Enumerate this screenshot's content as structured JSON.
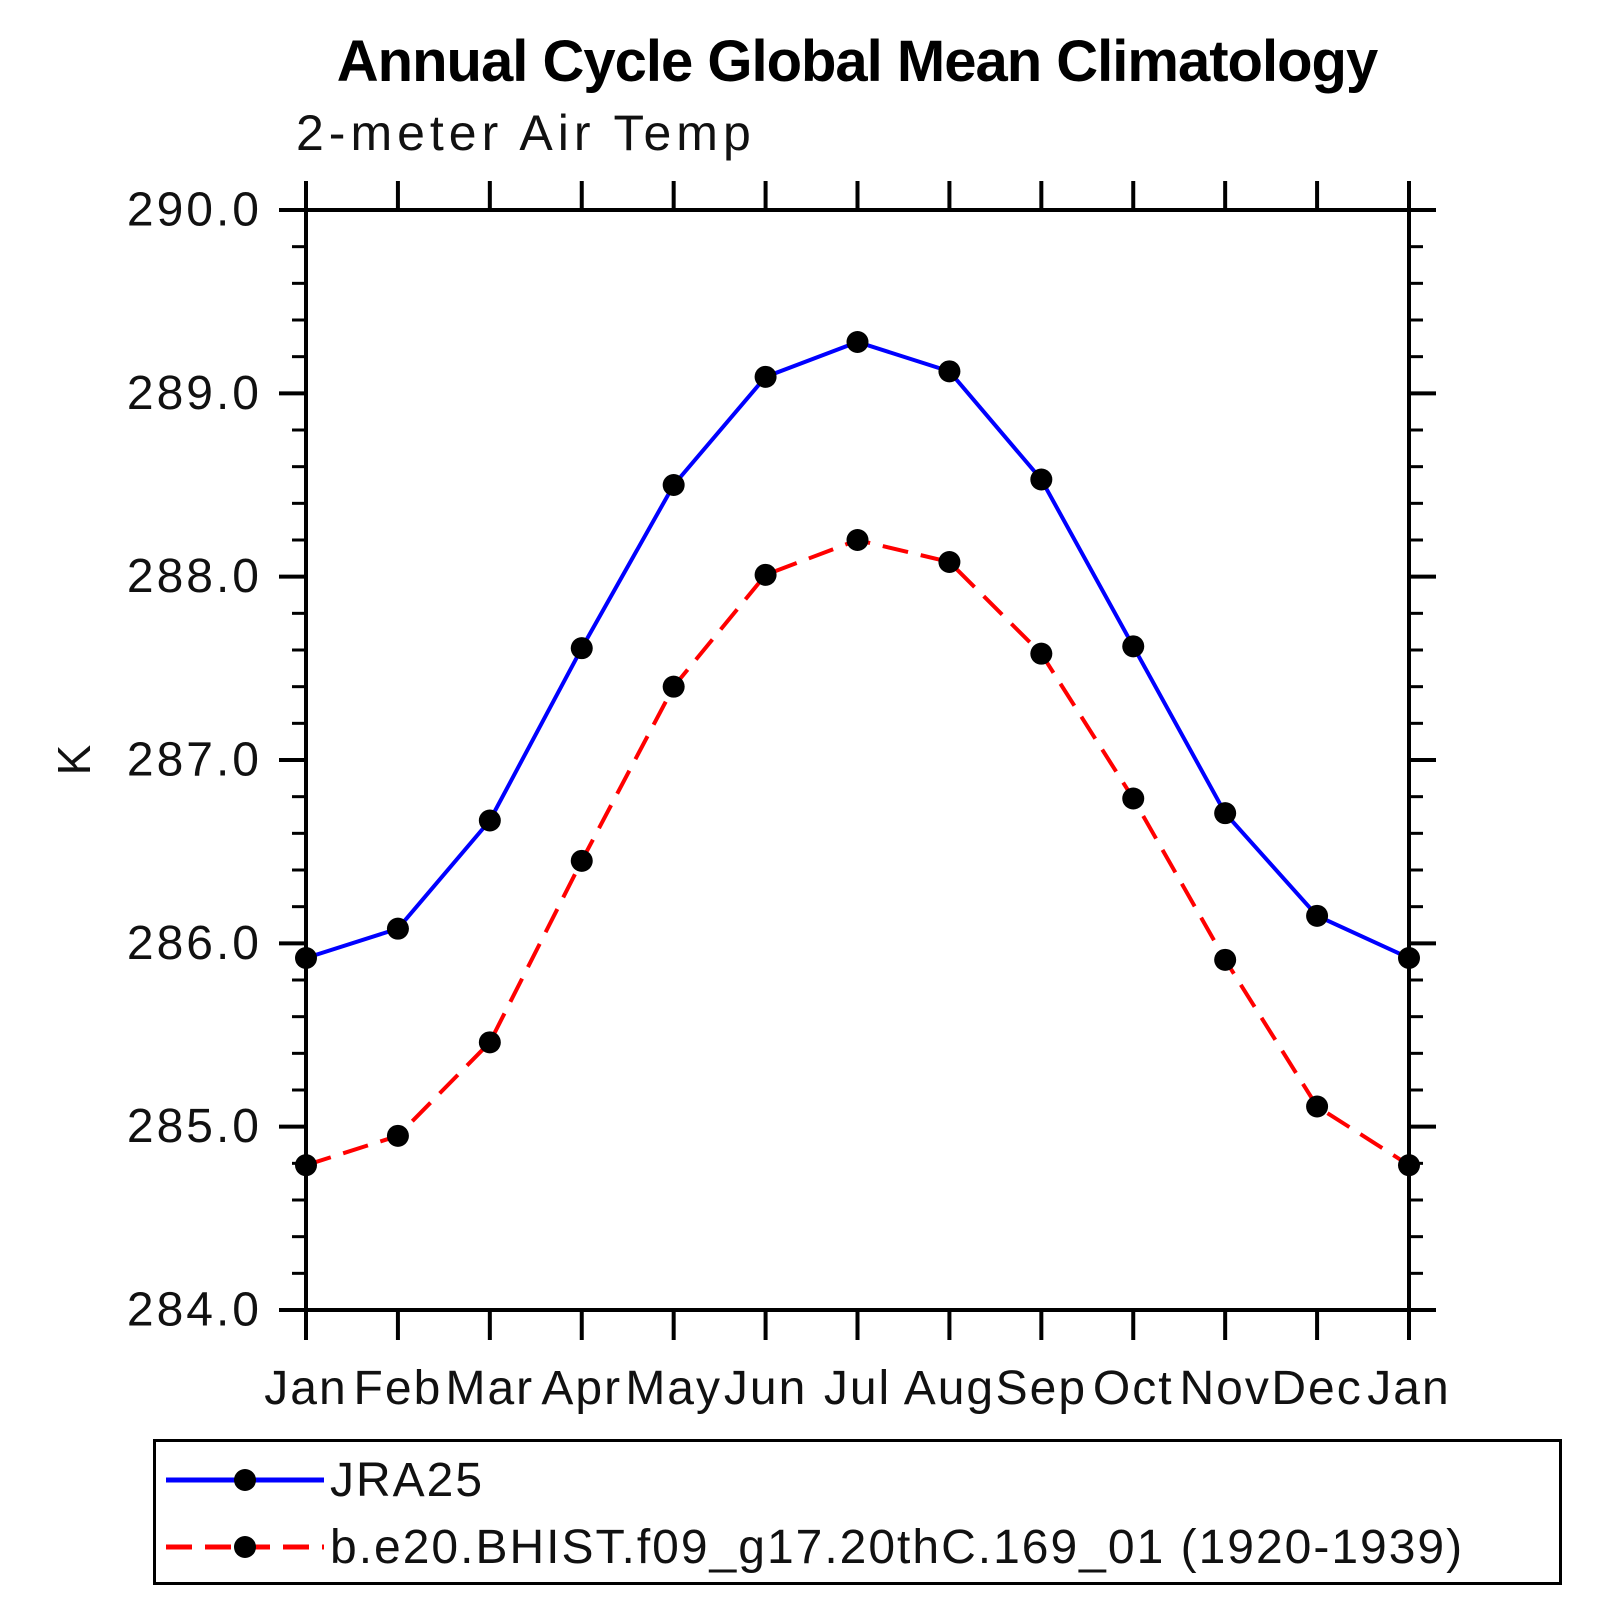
{
  "chart_data": {
    "type": "line",
    "title": "Annual Cycle Global Mean Climatology",
    "subtitle": "2-meter Air Temp",
    "ylabel": "K",
    "xlabel": "",
    "ylim": [
      284.0,
      290.0
    ],
    "ytick_step": 1.0,
    "ytick_minor_step": 0.2,
    "yticklabels": [
      "290.0",
      "289.0",
      "288.0",
      "287.0",
      "286.0",
      "285.0",
      "284.0"
    ],
    "x": [
      "Jan",
      "Feb",
      "Mar",
      "Apr",
      "May",
      "Jun",
      "Jul",
      "Aug",
      "Sep",
      "Oct",
      "Nov",
      "Dec",
      "Jan"
    ],
    "grid": false,
    "legend_position": "bottom-left-box",
    "series": [
      {
        "name": "JRA25",
        "color": "#0000ff",
        "line_style": "solid",
        "marker": "filled-circle",
        "marker_color": "#000000",
        "values": [
          285.92,
          286.08,
          286.67,
          287.61,
          288.5,
          289.09,
          289.28,
          289.12,
          288.53,
          287.62,
          286.71,
          286.15,
          285.92
        ]
      },
      {
        "name": "b.e20.BHIST.f09_g17.20thC.169_01 (1920-1939)",
        "color": "#ff0000",
        "line_style": "dashed",
        "marker": "filled-circle",
        "marker_color": "#000000",
        "values": [
          284.79,
          284.95,
          285.46,
          286.45,
          287.4,
          288.01,
          288.2,
          288.08,
          287.58,
          286.79,
          285.91,
          285.11,
          284.79
        ]
      }
    ],
    "axis_color": "#000000"
  }
}
